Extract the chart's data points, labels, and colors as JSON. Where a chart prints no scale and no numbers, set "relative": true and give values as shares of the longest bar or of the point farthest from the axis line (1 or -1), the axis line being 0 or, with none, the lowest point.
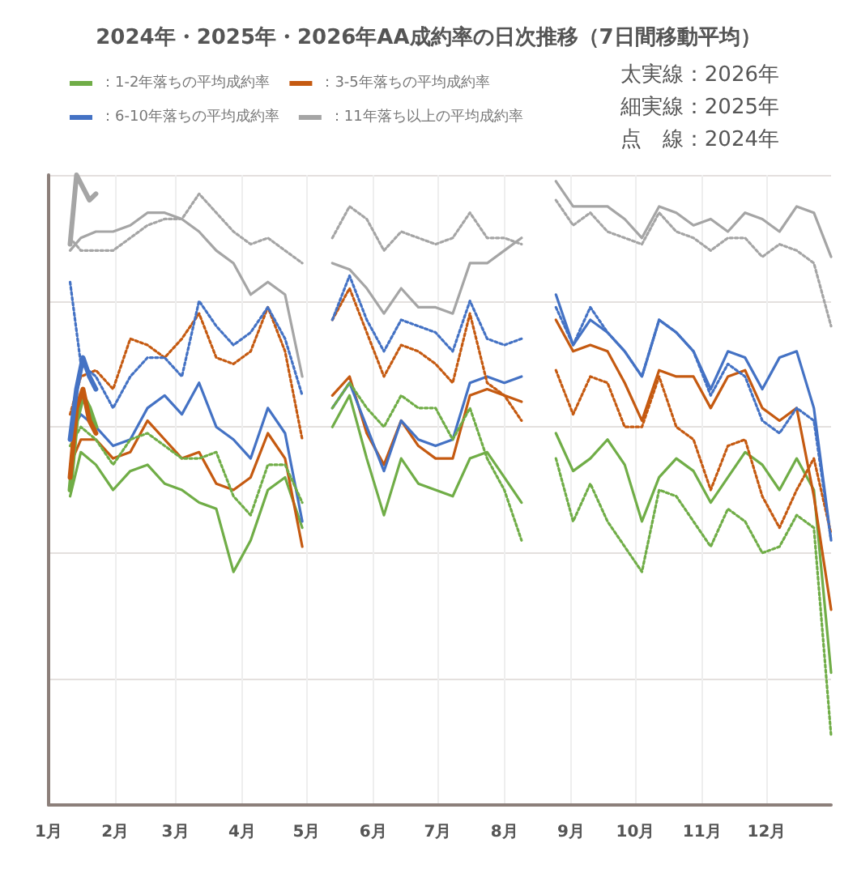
{
  "chart_data": {
    "type": "line",
    "title": "2024年・2025年・2026年AA成約率の日次推移（7日間移動平均）",
    "relative": true,
    "grid": true,
    "legend": "top left",
    "marker": "none",
    "x": [
      "--01-11",
      "--01-16",
      "--01-23",
      "--01-31",
      "--02-08",
      "--02-16",
      "--02-24",
      "--03-04",
      "--03-12",
      "--03-20",
      "--03-28",
      "--04-05",
      "--04-13",
      "--04-21",
      "--04-29",
      "--05-06",
      "--05-13",
      "--05-21",
      "--05-29",
      "--06-06",
      "--06-14",
      "--06-22",
      "--06-30",
      "--07-08",
      "--07-16",
      "--07-24",
      "--08-01",
      "--08-09",
      "--08-17",
      "--08-25",
      "--09-02",
      "--09-10",
      "--09-18",
      "--09-26",
      "--10-04",
      "--10-12",
      "--10-20",
      "--10-28",
      "--11-05",
      "--11-13",
      "--11-21",
      "--11-29",
      "--12-07",
      "--12-15",
      "--12-23",
      "--12-31"
    ],
    "xlim": [
      "--01-01",
      "--12-31"
    ],
    "xticks": [
      {
        "value": "--01-01",
        "label": "1月"
      },
      {
        "value": "--02-01",
        "label": "2月"
      },
      {
        "value": "--03-01",
        "label": "3月"
      },
      {
        "value": "--04-01",
        "label": "4月"
      },
      {
        "value": "--05-01",
        "label": "5月"
      },
      {
        "value": "--06-01",
        "label": "6月"
      },
      {
        "value": "--07-01",
        "label": "7月"
      },
      {
        "value": "--08-01",
        "label": "8月"
      },
      {
        "value": "--09-01",
        "label": "9月"
      },
      {
        "value": "--10-01",
        "label": "10月"
      },
      {
        "value": "--11-01",
        "label": "11月"
      },
      {
        "value": "--12-01",
        "label": "12月"
      }
    ],
    "annotations": [
      "太実線：2026年",
      "細実線：2025年",
      "点　線：2024年"
    ],
    "series": [
      {
        "name": "：1-2年落ちの平均成約率",
        "color": "#70ad47",
        "line_style": "solid",
        "values": [
          0.49,
          0.56,
          0.54,
          0.5,
          0.53,
          0.54,
          0.51,
          0.5,
          0.48,
          0.47,
          0.37,
          0.42,
          0.5,
          0.52,
          0.44,
          null,
          0.6,
          0.65,
          0.55,
          0.46,
          0.55,
          0.51,
          0.5,
          0.49,
          0.55,
          0.56,
          0.52,
          0.48,
          null,
          0.59,
          0.53,
          0.55,
          0.58,
          0.54,
          0.45,
          0.52,
          0.55,
          0.53,
          0.48,
          0.52,
          0.56,
          0.54,
          0.5,
          0.55,
          0.5,
          0.21
        ]
      },
      {
        "name": "：3-5年落ちの平均成約率",
        "color": "#c55a11",
        "line_style": "solid",
        "values": [
          0.54,
          0.58,
          0.58,
          0.55,
          0.56,
          0.61,
          0.58,
          0.55,
          0.56,
          0.51,
          0.5,
          0.52,
          0.59,
          0.55,
          0.41,
          null,
          0.65,
          0.68,
          0.59,
          0.54,
          0.61,
          0.57,
          0.55,
          0.55,
          0.65,
          0.66,
          0.65,
          0.64,
          null,
          0.77,
          0.72,
          0.73,
          0.72,
          0.67,
          0.61,
          0.69,
          0.68,
          0.68,
          0.63,
          0.68,
          0.69,
          0.63,
          0.61,
          0.63,
          0.49,
          0.31
        ]
      },
      {
        "name": "：6-10年落ちの平均成約率",
        "color": "#4472c4",
        "line_style": "solid",
        "values": [
          0.59,
          0.62,
          0.6,
          0.57,
          0.58,
          0.63,
          0.65,
          0.62,
          0.67,
          0.6,
          0.58,
          0.55,
          0.63,
          0.59,
          0.45,
          null,
          0.63,
          0.67,
          0.6,
          0.53,
          0.61,
          0.58,
          0.57,
          0.58,
          0.67,
          0.68,
          0.67,
          0.68,
          null,
          0.81,
          0.73,
          0.77,
          0.75,
          0.72,
          0.68,
          0.77,
          0.75,
          0.72,
          0.66,
          0.72,
          0.71,
          0.66,
          0.71,
          0.72,
          0.63,
          0.42
        ]
      },
      {
        "name": "：11年落ち以上の平均成約率",
        "color": "#a5a5a5",
        "line_style": "solid",
        "values": [
          0.88,
          0.9,
          0.91,
          0.91,
          0.92,
          0.94,
          0.94,
          0.93,
          0.91,
          0.88,
          0.86,
          0.81,
          0.83,
          0.81,
          0.68,
          null,
          0.86,
          0.85,
          0.82,
          0.78,
          0.82,
          0.79,
          0.79,
          0.78,
          0.86,
          0.86,
          0.88,
          0.9,
          null,
          0.99,
          0.95,
          0.95,
          0.95,
          0.93,
          0.9,
          0.95,
          0.94,
          0.92,
          0.93,
          0.91,
          0.94,
          0.93,
          0.91,
          0.95,
          0.94,
          0.87
        ]
      },
      {
        "color": "#70ad47",
        "line_style": "dotted",
        "values": [
          0.57,
          0.6,
          0.58,
          0.54,
          0.58,
          0.59,
          0.57,
          0.55,
          0.55,
          0.56,
          0.49,
          0.46,
          0.54,
          0.54,
          0.48,
          null,
          0.63,
          0.67,
          0.63,
          0.6,
          0.65,
          0.63,
          0.63,
          0.58,
          0.63,
          0.55,
          0.5,
          0.42,
          null,
          0.55,
          0.45,
          0.51,
          0.45,
          0.41,
          0.37,
          0.5,
          0.49,
          0.45,
          0.41,
          0.47,
          0.45,
          0.4,
          0.41,
          0.46,
          0.44,
          0.11
        ]
      },
      {
        "color": "#c55a11",
        "line_style": "dotted",
        "values": [
          0.62,
          0.68,
          0.69,
          0.66,
          0.74,
          0.73,
          0.71,
          0.74,
          0.78,
          0.71,
          0.7,
          0.72,
          0.79,
          0.72,
          0.58,
          null,
          0.77,
          0.82,
          0.75,
          0.68,
          0.73,
          0.72,
          0.7,
          0.67,
          0.78,
          0.67,
          0.65,
          0.61,
          null,
          0.69,
          0.62,
          0.68,
          0.67,
          0.6,
          0.6,
          0.68,
          0.6,
          0.58,
          0.5,
          0.57,
          0.58,
          0.49,
          0.44,
          0.5,
          0.55,
          0.43
        ]
      },
      {
        "color": "#4472c4",
        "line_style": "dotted",
        "values": [
          0.83,
          0.7,
          0.68,
          0.63,
          0.68,
          0.71,
          0.71,
          0.68,
          0.8,
          0.76,
          0.73,
          0.75,
          0.79,
          0.74,
          0.65,
          null,
          0.77,
          0.84,
          0.77,
          0.72,
          0.77,
          0.76,
          0.75,
          0.72,
          0.8,
          0.74,
          0.73,
          0.74,
          null,
          0.79,
          0.73,
          0.79,
          0.75,
          0.72,
          0.68,
          0.77,
          0.75,
          0.72,
          0.65,
          0.7,
          0.68,
          0.61,
          0.59,
          0.63,
          0.61,
          0.42
        ]
      },
      {
        "color": "#a5a5a5",
        "line_style": "dotted",
        "values": [
          0.9,
          0.88,
          0.88,
          0.88,
          0.9,
          0.92,
          0.93,
          0.93,
          0.97,
          0.94,
          0.91,
          0.89,
          0.9,
          0.88,
          0.86,
          null,
          0.9,
          0.95,
          0.93,
          0.88,
          0.91,
          0.9,
          0.89,
          0.9,
          0.94,
          0.9,
          0.9,
          0.89,
          null,
          0.96,
          0.92,
          0.94,
          0.91,
          0.9,
          0.89,
          0.94,
          0.91,
          0.9,
          0.88,
          0.9,
          0.9,
          0.87,
          0.89,
          0.88,
          0.86,
          0.76
        ]
      },
      {
        "color": "#70ad47",
        "line_style": "solid",
        "x": [
          "--01-11",
          "--01-14",
          "--01-17",
          "--01-20",
          "--01-23"
        ],
        "values": [
          0.5,
          0.61,
          0.65,
          0.63,
          0.6
        ]
      },
      {
        "color": "#c55a11",
        "line_style": "solid",
        "x": [
          "--01-11",
          "--01-14",
          "--01-17",
          "--01-20",
          "--01-23"
        ],
        "values": [
          0.52,
          0.63,
          0.66,
          0.61,
          0.59
        ]
      },
      {
        "color": "#4472c4",
        "line_style": "solid",
        "x": [
          "--01-11",
          "--01-14",
          "--01-17",
          "--01-20",
          "--01-23"
        ],
        "values": [
          0.58,
          0.66,
          0.71,
          0.68,
          0.66
        ]
      },
      {
        "color": "#a5a5a5",
        "line_style": "solid",
        "x": [
          "--01-11",
          "--01-14",
          "--01-17",
          "--01-20",
          "--01-23"
        ],
        "values": [
          0.89,
          1.0,
          0.98,
          0.96,
          0.97
        ]
      }
    ]
  }
}
